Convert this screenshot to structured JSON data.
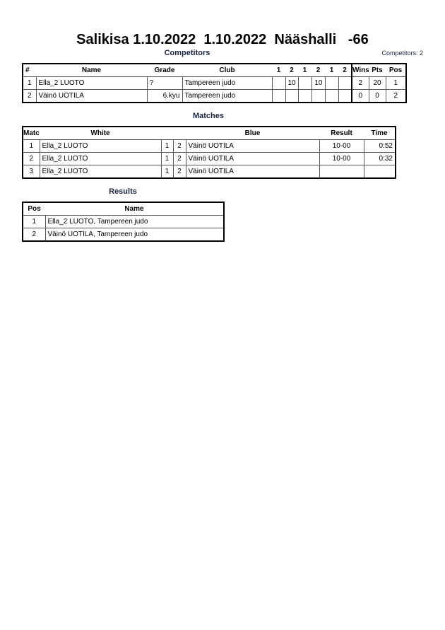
{
  "title": "Salikisa 1.10.2022  1.10.2022  Nääshalli   -66",
  "competitors": {
    "heading": "Competitors",
    "count_label": "Competitors: 2",
    "columns": [
      "#",
      "Name",
      "Grade",
      "Club",
      "1",
      "2",
      "1",
      "2",
      "1",
      "2",
      "Wins",
      "Pts",
      "Pos"
    ],
    "rows": [
      {
        "num": "1",
        "name": "Ella_2 LUOTO",
        "grade": "?",
        "club": "Tampereen judo",
        "scores": [
          "",
          "10",
          "",
          "10",
          "",
          ""
        ],
        "wins": "2",
        "pts": "20",
        "pos": "1"
      },
      {
        "num": "2",
        "name": "Väinö UOTILA",
        "grade": "6.kyu",
        "club": "Tampereen judo",
        "scores": [
          "",
          "",
          "",
          "",
          "",
          ""
        ],
        "wins": "0",
        "pts": "0",
        "pos": "2"
      }
    ]
  },
  "matches": {
    "heading": "Matches",
    "columns": [
      "Match",
      "White",
      "Blue",
      "Result",
      "Time"
    ],
    "rows": [
      {
        "match": "1",
        "white": "Ella_2 LUOTO",
        "w": "1",
        "b": "2",
        "blue": "Väinö UOTILA",
        "result": "10-00",
        "time": "0:52"
      },
      {
        "match": "2",
        "white": "Ella_2 LUOTO",
        "w": "1",
        "b": "2",
        "blue": "Väinö UOTILA",
        "result": "10-00",
        "time": "0:32"
      },
      {
        "match": "3",
        "white": "Ella_2 LUOTO",
        "w": "1",
        "b": "2",
        "blue": "Väinö UOTILA",
        "result": "",
        "time": ""
      }
    ]
  },
  "results": {
    "heading": "Results",
    "columns": [
      "Pos",
      "Name"
    ],
    "rows": [
      {
        "pos": "1",
        "name": "Ella_2 LUOTO, Tampereen judo"
      },
      {
        "pos": "2",
        "name": "Väinö UOTILA, Tampereen judo"
      }
    ]
  }
}
